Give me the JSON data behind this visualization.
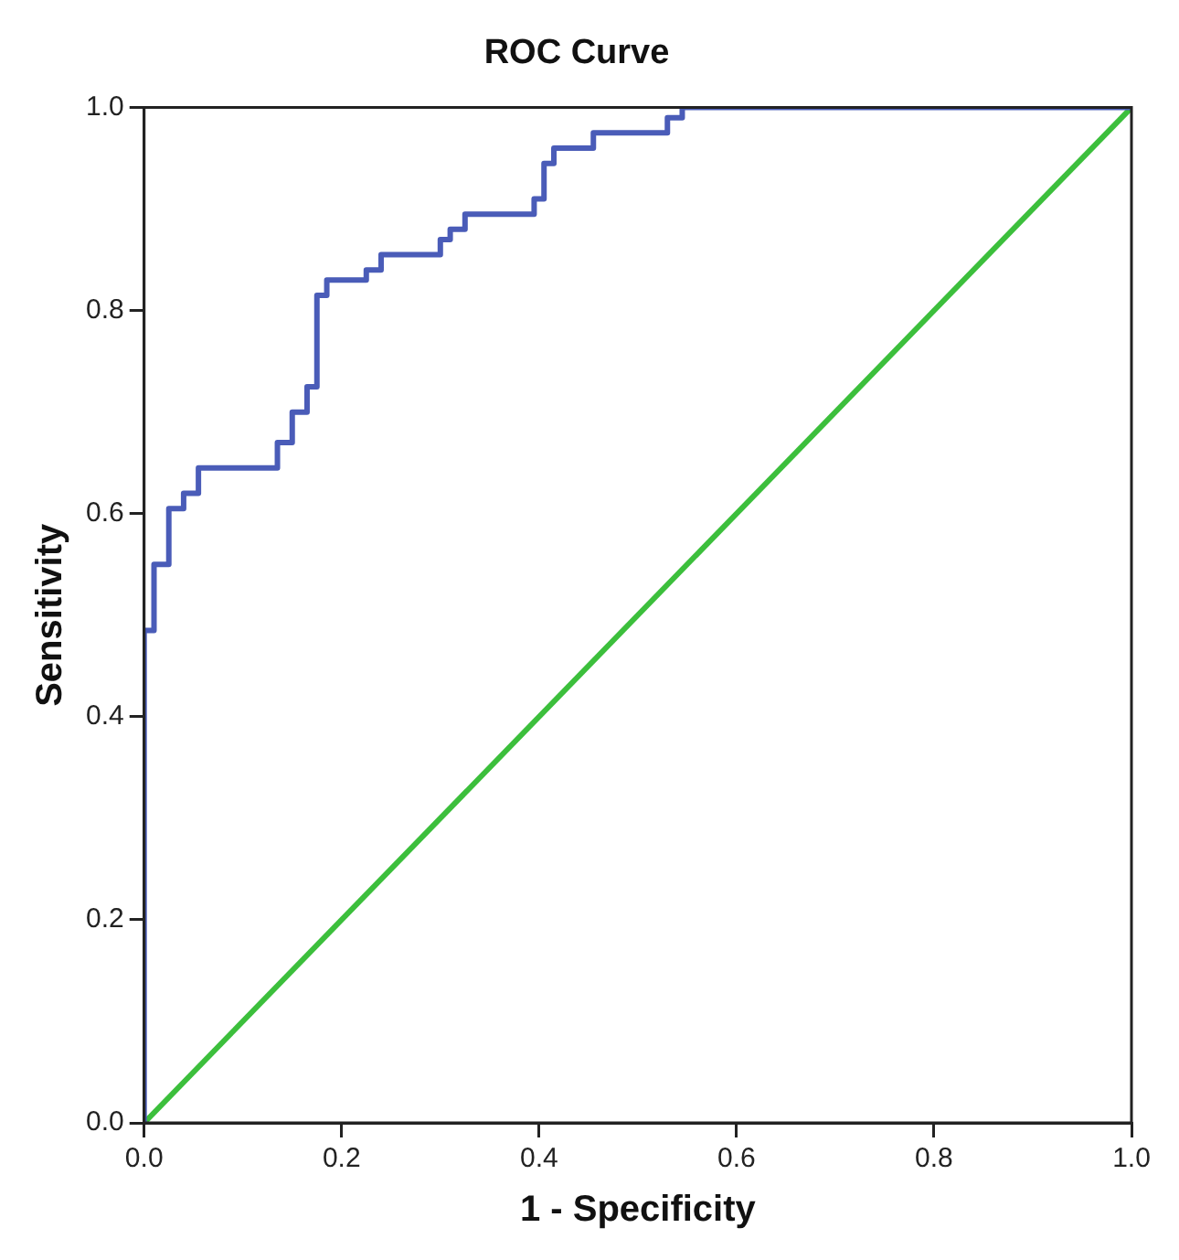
{
  "chart_data": {
    "type": "step",
    "title": "ROC Curve",
    "xlabel": "1 - Specificity",
    "ylabel": "Sensitivity",
    "series": [
      {
        "type": "step",
        "color": "#4a5cb8",
        "x": [
          0,
          0,
          0.01,
          0.025,
          0.04,
          0.055,
          0.135,
          0.15,
          0.165,
          0.175,
          0.185,
          0.225,
          0.24,
          0.3,
          0.31,
          0.325,
          0.395,
          0.405,
          0.415,
          0.455,
          0.53,
          0.545,
          1.0
        ],
        "values": [
          0,
          0.485,
          0.55,
          0.605,
          0.62,
          0.645,
          0.67,
          0.7,
          0.725,
          0.815,
          0.83,
          0.84,
          0.855,
          0.87,
          0.88,
          0.895,
          0.91,
          0.945,
          0.96,
          0.975,
          0.99,
          1.0,
          1.0
        ]
      },
      {
        "type": "line",
        "color": "#3cbf3c",
        "x": [
          0,
          1
        ],
        "values": [
          0,
          1
        ]
      }
    ],
    "xlim": [
      0,
      1
    ],
    "ylim": [
      0,
      1
    ],
    "xticks": [
      {
        "value": 0,
        "label": "0.0"
      },
      {
        "value": 0.2,
        "label": "0.2"
      },
      {
        "value": 0.4,
        "label": "0.4"
      },
      {
        "value": 0.6,
        "label": "0.6"
      },
      {
        "value": 0.8,
        "label": "0.8"
      },
      {
        "value": 1,
        "label": "1.0"
      }
    ],
    "yticks": [
      {
        "value": 0,
        "label": "0.0"
      },
      {
        "value": 0.2,
        "label": "0.2"
      },
      {
        "value": 0.4,
        "label": "0.4"
      },
      {
        "value": 0.6,
        "label": "0.6"
      },
      {
        "value": 0.8,
        "label": "0.8"
      },
      {
        "value": 1,
        "label": "1.0"
      }
    ],
    "grid": false,
    "legend": false,
    "marker": "none"
  }
}
